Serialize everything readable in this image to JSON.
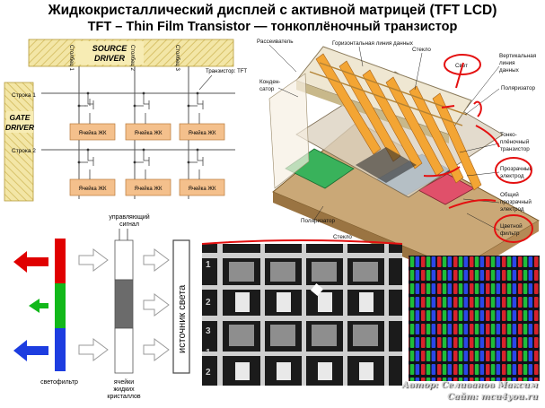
{
  "title": "Жидкокристаллический дисплей с активной матрицей (TFT LCD)",
  "subtitle": "TFT – Thin Film Transistor — тонкоплёночный транзистор",
  "matrix": {
    "source_driver": [
      "SOURCE",
      "DRIVER"
    ],
    "gate_driver": [
      "GATE",
      "DRIVER"
    ],
    "columns": [
      "Столбец 1",
      "Столбец 2",
      "Столбец 3"
    ],
    "rows": [
      "Строка 1",
      "Строка 2"
    ],
    "tft_label": "Транзистор: TFT",
    "cell_label": "Ячейка ЖК"
  },
  "layers": {
    "labels": [
      "Рассеиватель",
      "Горизонтальная линия данных",
      "Стекло",
      "Конден-",
      "сатор",
      "Свет",
      "Вертикальная",
      "линия",
      "данных",
      "Поляризатор",
      "Тонко-",
      "плёночный",
      "транзистор",
      "Прозрачный",
      "электрод",
      "Общий",
      "прозрачный",
      "электрод",
      "Цветной",
      "фильтр",
      "Поляризатор",
      "Стекло"
    ]
  },
  "light": {
    "control_signal": [
      "управляющий",
      "сигнал"
    ],
    "light_source": "источник света",
    "color_filter": "светофильтр",
    "lc_cells": [
      "ячейки",
      "жидких",
      "кристаллов"
    ],
    "filter_colors": [
      "#e00000",
      "#12b81a",
      "#1d3de0"
    ],
    "arrow_colors": [
      "#e00000",
      "#12b81a",
      "#1d3de0"
    ],
    "cell_shades": [
      "#ffffff",
      "#6b6b6b",
      "#ffffff"
    ]
  },
  "micro": {
    "row_labels": [
      "1",
      "2",
      "3",
      "1",
      "2"
    ]
  },
  "credits": {
    "author": "Автор: Селиванов Максим",
    "site": "Сайт: mcu4you.ru"
  }
}
